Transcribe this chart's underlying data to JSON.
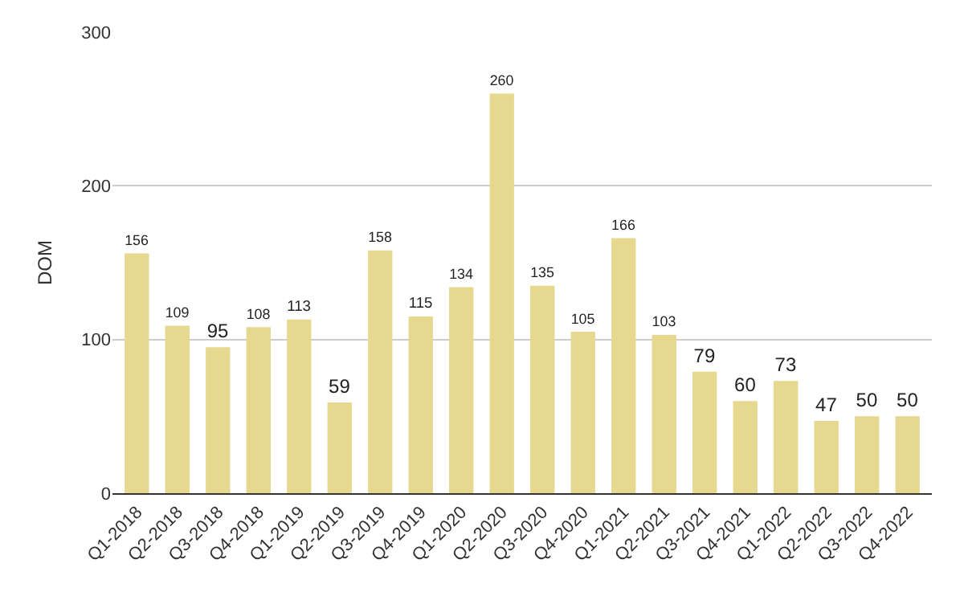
{
  "chart_data": {
    "type": "bar",
    "ylabel": "DOM",
    "categories": [
      "Q1-2018",
      "Q2-2018",
      "Q3-2018",
      "Q4-2018",
      "Q1-2019",
      "Q2-2019",
      "Q3-2019",
      "Q4-2019",
      "Q1-2020",
      "Q2-2020",
      "Q3-2020",
      "Q4-2020",
      "Q1-2021",
      "Q2-2021",
      "Q3-2021",
      "Q4-2021",
      "Q1-2022",
      "Q2-2022",
      "Q3-2022",
      "Q4-2022"
    ],
    "values": [
      156,
      109,
      95,
      108,
      113,
      59,
      158,
      115,
      134,
      260,
      135,
      105,
      166,
      103,
      79,
      60,
      73,
      47,
      50,
      50
    ],
    "color": "#e6d88f",
    "ylim": [
      0,
      300
    ],
    "yticks": [
      0,
      100,
      200,
      300
    ],
    "grid": "y",
    "data_labels": true
  }
}
